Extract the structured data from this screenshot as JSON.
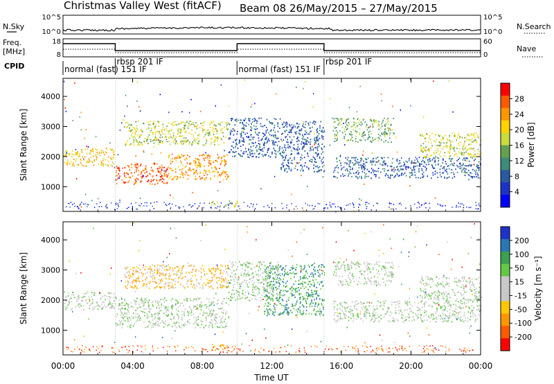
{
  "header": {
    "title_left": "Christmas Valley West (fitACF)",
    "title_right": "Beam 08  26/May/2015 – 27/May/2015"
  },
  "side_labels": {
    "nsky": "N.Sky",
    "nsearch": "N.Search",
    "freq": "Freq.",
    "freq_unit": "[MHz]",
    "nave": "Nave",
    "cpid": "CPID"
  },
  "noise_axis": {
    "left_ticks": [
      "10^5",
      "10^0"
    ],
    "right_ticks": [
      "10^5",
      "10^0"
    ]
  },
  "freq_axis": {
    "left_ticks": [
      "18",
      "8"
    ],
    "right_ticks": [
      "60",
      "0"
    ]
  },
  "cpid_segments": [
    {
      "label": "normal (fast) 151 IF",
      "start": 0.0,
      "end": 3.0
    },
    {
      "label": "rbsp 201 IF",
      "start": 3.0,
      "end": 10.0
    },
    {
      "label": "normal (fast) 151 IF",
      "start": 10.0,
      "end": 15.0
    },
    {
      "label": "rbsp 201 IF",
      "start": 15.0,
      "end": 24.0
    }
  ],
  "chart_data": [
    {
      "type": "heatmap",
      "name": "power",
      "ylabel": "Slant Range [km]",
      "ylim": [
        180,
        4600
      ],
      "xlim": [
        0,
        24
      ],
      "y_ticks": [
        1000,
        2000,
        3000,
        4000
      ],
      "colorbar": {
        "label": "Power [dB]",
        "ticks": [
          "28",
          "24",
          "20",
          "16",
          "12",
          "8",
          "4"
        ],
        "colors": [
          "#ff0000",
          "#ff5a00",
          "#ff9600",
          "#ffd200",
          "#c8dc3c",
          "#64a050",
          "#3c8c78",
          "#285aa0",
          "#1e32c8",
          "#0000ff"
        ]
      },
      "bands": [
        {
          "start": 0.0,
          "end": 3.0,
          "low": 1700,
          "high": 2300,
          "value": 20
        },
        {
          "start": 3.0,
          "end": 6.0,
          "low": 1100,
          "high": 1800,
          "value": 26
        },
        {
          "start": 6.0,
          "end": 9.5,
          "low": 1250,
          "high": 2100,
          "value": 22
        },
        {
          "start": 3.5,
          "end": 9.5,
          "low": 2400,
          "high": 3200,
          "value": 16
        },
        {
          "start": 9.5,
          "end": 12.5,
          "low": 2000,
          "high": 3300,
          "value": 8
        },
        {
          "start": 12.5,
          "end": 15.0,
          "low": 1500,
          "high": 3200,
          "value": 6
        },
        {
          "start": 15.5,
          "end": 24.0,
          "low": 1300,
          "high": 2000,
          "value": 6
        },
        {
          "start": 15.5,
          "end": 19.0,
          "low": 2500,
          "high": 3300,
          "value": 14
        },
        {
          "start": 20.5,
          "end": 24.0,
          "low": 2000,
          "high": 2800,
          "value": 18
        },
        {
          "start": 8.5,
          "end": 10.0,
          "low": 350,
          "high": 550,
          "value": 16
        }
      ]
    },
    {
      "type": "heatmap",
      "name": "velocity",
      "ylabel": "Slant Range [km]",
      "ylim": [
        180,
        4600
      ],
      "xlim": [
        0,
        24
      ],
      "y_ticks": [
        1000,
        2000,
        3000,
        4000
      ],
      "colorbar": {
        "label": "Velocity [m s⁻¹]",
        "ticks": [
          "200",
          "100",
          "50",
          "15",
          "-15",
          "-50",
          "-100",
          "-200"
        ],
        "colors": [
          "#1e32c8",
          "#2878b4",
          "#3ca050",
          "#64c846",
          "#c8c8c8",
          "#c8c8c8",
          "#ffc800",
          "#ff9600",
          "#ff5a00",
          "#ff0000"
        ]
      },
      "bands": [
        {
          "start": 0.0,
          "end": 3.0,
          "low": 1700,
          "high": 2300,
          "value": 0
        },
        {
          "start": 3.0,
          "end": 9.5,
          "low": 1100,
          "high": 2100,
          "value": 0
        },
        {
          "start": 3.5,
          "end": 9.5,
          "low": 2400,
          "high": 3200,
          "value": -60
        },
        {
          "start": 9.5,
          "end": 12.5,
          "low": 2000,
          "high": 3300,
          "value": 0
        },
        {
          "start": 11.5,
          "end": 15.0,
          "low": 1500,
          "high": 3200,
          "value": 60
        },
        {
          "start": 15.5,
          "end": 24.0,
          "low": 1300,
          "high": 2000,
          "value": 0
        },
        {
          "start": 15.5,
          "end": 19.0,
          "low": 2500,
          "high": 3300,
          "value": 0
        },
        {
          "start": 20.5,
          "end": 24.0,
          "low": 2000,
          "high": 2800,
          "value": 0
        },
        {
          "start": 8.5,
          "end": 10.0,
          "low": 350,
          "high": 550,
          "value": -80
        }
      ]
    }
  ],
  "x_ticks": [
    "00:00",
    "04:00",
    "08:00",
    "12:00",
    "16:00",
    "20:00",
    "00:00"
  ],
  "xlabel": "Time UT"
}
